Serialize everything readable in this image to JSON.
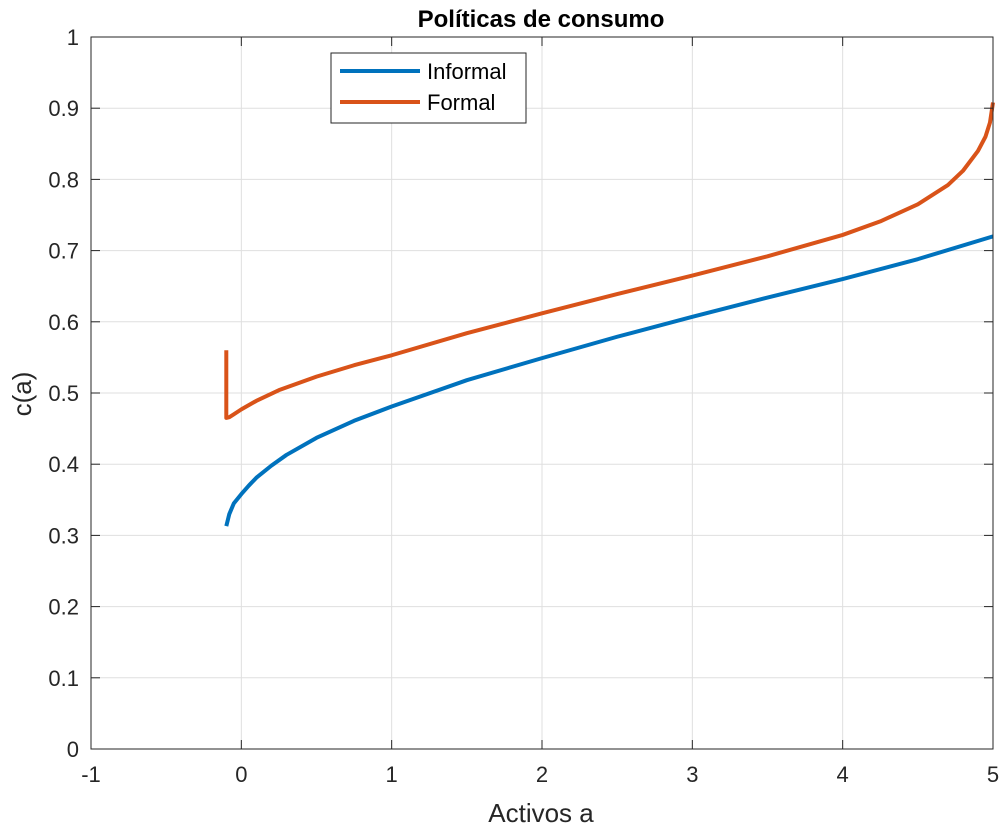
{
  "chart_data": {
    "type": "line",
    "title": "Políticas de consumo",
    "xlabel": "Activos a",
    "ylabel": "c(a)",
    "xlim": [
      -1,
      5
    ],
    "ylim": [
      0,
      1
    ],
    "xticks": [
      -1,
      0,
      1,
      2,
      3,
      4,
      5
    ],
    "xtick_labels": [
      "-1",
      "0",
      "1",
      "2",
      "3",
      "4",
      "5"
    ],
    "yticks": [
      0,
      0.1,
      0.2,
      0.3,
      0.4,
      0.5,
      0.6,
      0.7,
      0.8,
      0.9,
      1
    ],
    "ytick_labels": [
      "0",
      "0.1",
      "0.2",
      "0.3",
      "0.4",
      "0.5",
      "0.6",
      "0.7",
      "0.8",
      "0.9",
      "1"
    ],
    "grid": true,
    "legend_position": "top-left",
    "series": [
      {
        "name": "Informal",
        "color": "#0072BD",
        "x": [
          -0.1,
          -0.08,
          -0.05,
          0,
          0.05,
          0.1,
          0.2,
          0.3,
          0.5,
          0.75,
          1,
          1.5,
          2,
          2.5,
          3,
          3.5,
          4,
          4.5,
          5
        ],
        "y": [
          0.313,
          0.33,
          0.345,
          0.358,
          0.37,
          0.381,
          0.398,
          0.413,
          0.437,
          0.461,
          0.481,
          0.518,
          0.549,
          0.579,
          0.607,
          0.634,
          0.66,
          0.688,
          0.72
        ]
      },
      {
        "name": "Formal",
        "color": "#D95319",
        "x": [
          -0.1,
          -0.1,
          -0.08,
          -0.05,
          0,
          0.1,
          0.25,
          0.5,
          0.75,
          1,
          1.5,
          2,
          2.5,
          3,
          3.5,
          4,
          4.25,
          4.5,
          4.7,
          4.8,
          4.9,
          4.95,
          4.98,
          5
        ],
        "y": [
          0.56,
          0.465,
          0.466,
          0.47,
          0.477,
          0.489,
          0.504,
          0.523,
          0.539,
          0.553,
          0.584,
          0.612,
          0.639,
          0.665,
          0.692,
          0.722,
          0.741,
          0.765,
          0.792,
          0.812,
          0.84,
          0.86,
          0.88,
          0.908
        ]
      }
    ]
  }
}
